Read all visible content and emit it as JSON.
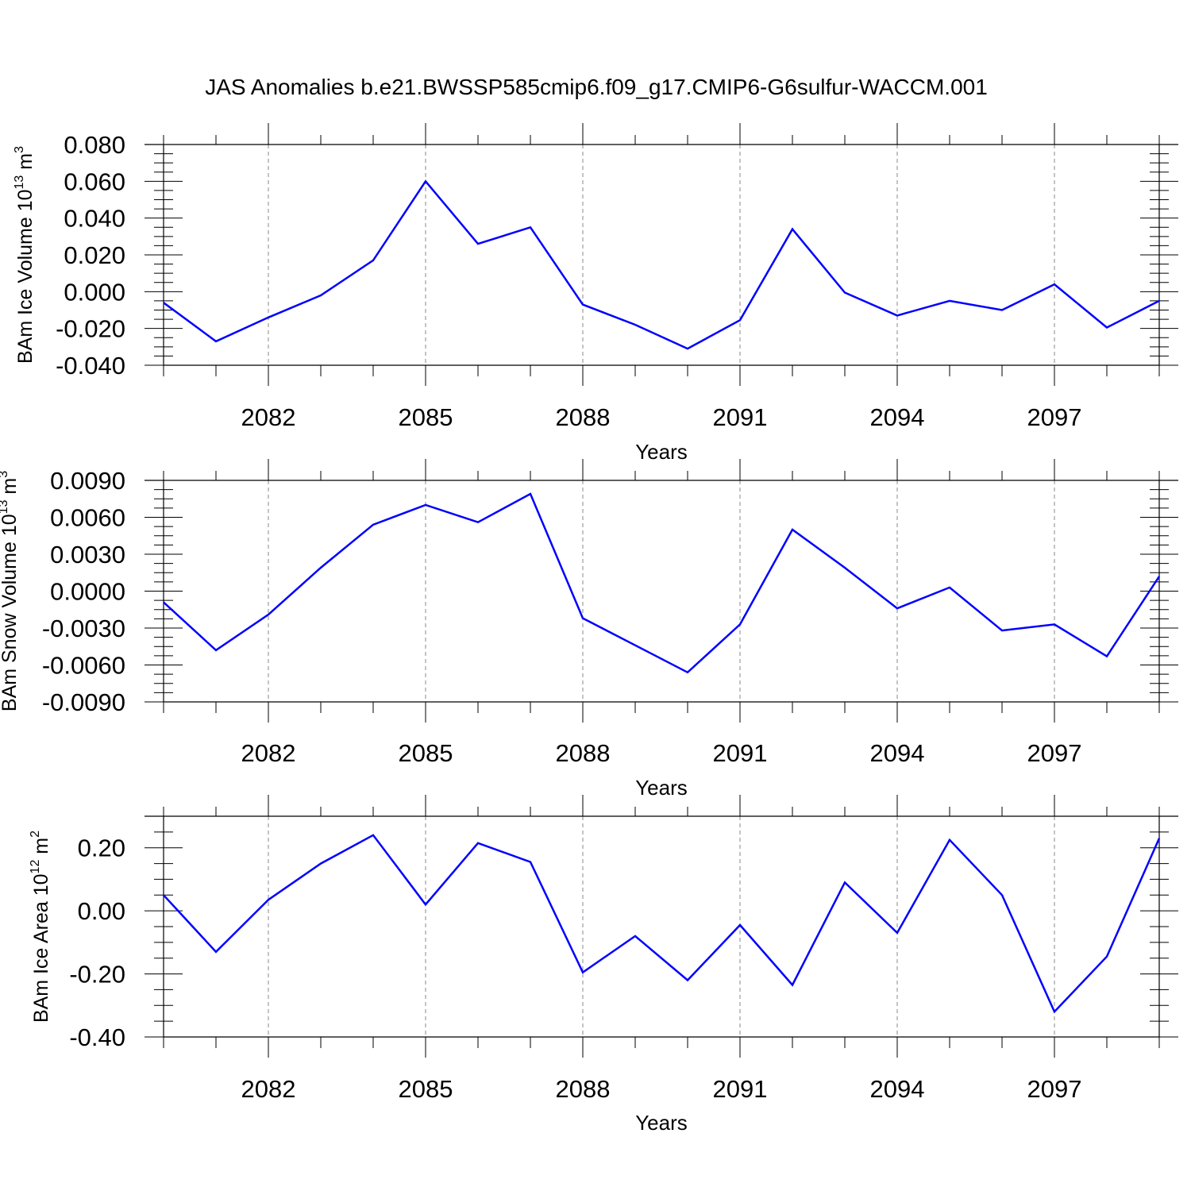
{
  "title": "JAS Anomalies b.e21.BWSSP585cmip6.f09_g17.CMIP6-G6sulfur-WACCM.001",
  "line_color": "#0000ff",
  "chart_data": [
    {
      "type": "line",
      "xlabel": "Years",
      "ylabel": {
        "text": "BAm Ice Volume 10",
        "exp": "13",
        "unit": " m",
        "unit_exp": "3"
      },
      "x": [
        2080,
        2081,
        2082,
        2083,
        2084,
        2085,
        2086,
        2087,
        2088,
        2089,
        2090,
        2091,
        2092,
        2093,
        2094,
        2095,
        2096,
        2097,
        2098,
        2099
      ],
      "y": [
        -0.006,
        -0.027,
        -0.014,
        -0.002,
        0.017,
        0.06,
        0.026,
        0.035,
        -0.007,
        -0.018,
        -0.031,
        -0.0155,
        0.034,
        -0.0005,
        -0.013,
        -0.005,
        -0.01,
        0.004,
        -0.0195,
        -0.005
      ],
      "ylim": [
        -0.04,
        0.08
      ],
      "yticks": [
        -0.04,
        -0.02,
        0.0,
        0.02,
        0.04,
        0.06,
        0.08
      ],
      "ytick_labels": [
        "-0.040",
        "-0.020",
        "0.000",
        "0.020",
        "0.040",
        "0.060",
        "0.080"
      ],
      "xlim": [
        2080,
        2099
      ],
      "xticks": [
        2082,
        2085,
        2088,
        2091,
        2094,
        2097
      ],
      "xtick_labels": [
        "2082",
        "2085",
        "2088",
        "2091",
        "2094",
        "2097"
      ],
      "grid": "vertical dashed at labeled years"
    },
    {
      "type": "line",
      "xlabel": "Years",
      "ylabel": {
        "text": "BAm Snow Volume 10",
        "exp": "13",
        "unit": " m",
        "unit_exp": "3"
      },
      "x": [
        2080,
        2081,
        2082,
        2083,
        2084,
        2085,
        2086,
        2087,
        2088,
        2089,
        2090,
        2091,
        2092,
        2093,
        2094,
        2095,
        2096,
        2097,
        2098,
        2099
      ],
      "y": [
        -0.0009,
        -0.0048,
        -0.0019,
        0.0019,
        0.0054,
        0.007,
        0.0056,
        0.0079,
        -0.0022,
        -0.0044,
        -0.0066,
        -0.0027,
        0.005,
        0.0019,
        -0.0014,
        0.0003,
        -0.0032,
        -0.0027,
        -0.0053,
        0.0012
      ],
      "ylim": [
        -0.009,
        0.009
      ],
      "yticks": [
        -0.009,
        -0.006,
        -0.003,
        0.0,
        0.003,
        0.006,
        0.009
      ],
      "ytick_labels": [
        "-0.0090",
        "-0.0060",
        "-0.0030",
        "0.0000",
        "0.0030",
        "0.0060",
        "0.0090"
      ],
      "xlim": [
        2080,
        2099
      ],
      "xticks": [
        2082,
        2085,
        2088,
        2091,
        2094,
        2097
      ],
      "xtick_labels": [
        "2082",
        "2085",
        "2088",
        "2091",
        "2094",
        "2097"
      ],
      "grid": "vertical dashed at labeled years"
    },
    {
      "type": "line",
      "xlabel": "Years",
      "ylabel": {
        "text": "BAm Ice Area 10",
        "exp": "12",
        "unit": " m",
        "unit_exp": "2"
      },
      "x": [
        2080,
        2081,
        2082,
        2083,
        2084,
        2085,
        2086,
        2087,
        2088,
        2089,
        2090,
        2091,
        2092,
        2093,
        2094,
        2095,
        2096,
        2097,
        2098,
        2099
      ],
      "y": [
        0.05,
        -0.13,
        0.035,
        0.15,
        0.24,
        0.02,
        0.215,
        0.155,
        -0.195,
        -0.08,
        -0.22,
        -0.045,
        -0.235,
        0.09,
        -0.07,
        0.225,
        0.05,
        -0.32,
        -0.145,
        0.23
      ],
      "ylim": [
        -0.4,
        0.3
      ],
      "yticks": [
        -0.4,
        -0.2,
        0.0,
        0.2
      ],
      "ytick_labels": [
        "-0.40",
        "-0.20",
        "0.00",
        "0.20"
      ],
      "xlim": [
        2080,
        2099
      ],
      "xticks": [
        2082,
        2085,
        2088,
        2091,
        2094,
        2097
      ],
      "xtick_labels": [
        "2082",
        "2085",
        "2088",
        "2091",
        "2094",
        "2097"
      ],
      "grid": "vertical dashed at labeled years"
    }
  ]
}
